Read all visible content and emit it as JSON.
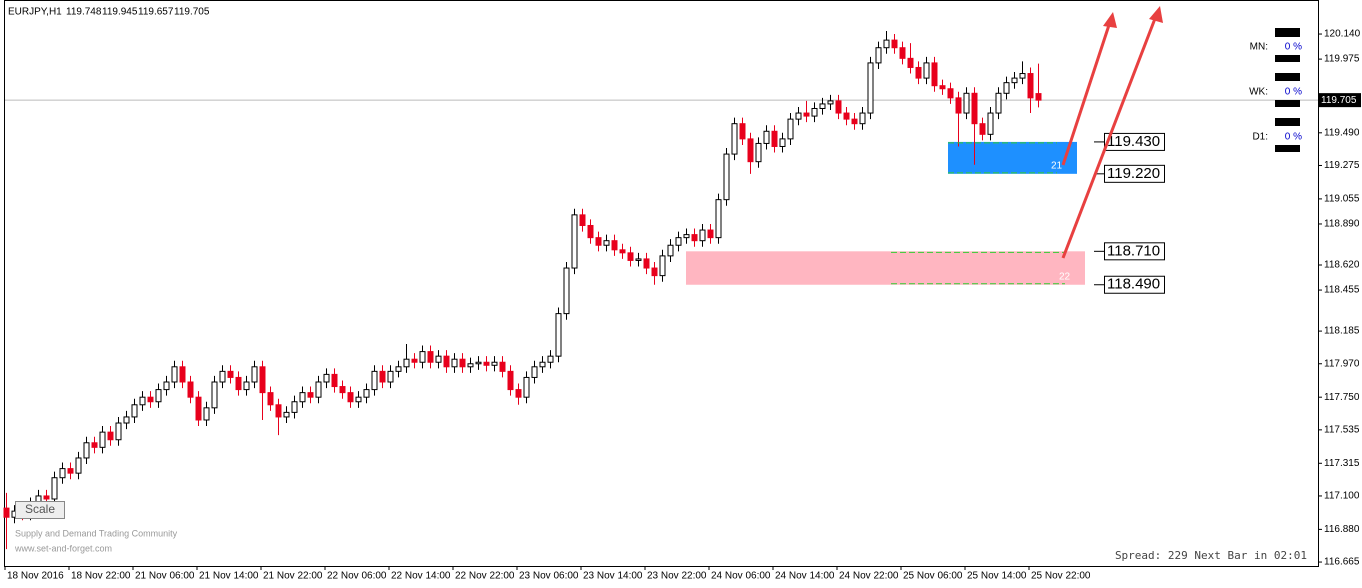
{
  "chart_data": {
    "type": "candlestick",
    "title": "EURJPY,H1",
    "ohlc_header": [
      119.748,
      119.945,
      119.657,
      119.705
    ],
    "x_labels": [
      "18 Nov 2016",
      "18 Nov 22:00",
      "21 Nov 06:00",
      "21 Nov 14:00",
      "21 Nov 22:00",
      "22 Nov 06:00",
      "22 Nov 14:00",
      "22 Nov 22:00",
      "23 Nov 06:00",
      "23 Nov 14:00",
      "23 Nov 22:00",
      "24 Nov 06:00",
      "24 Nov 14:00",
      "24 Nov 22:00",
      "25 Nov 06:00",
      "25 Nov 14:00",
      "25 Nov 22:00"
    ],
    "ylim": [
      116.639,
      120.364
    ],
    "yticks": [
      {
        "value": 120.14,
        "label": "120.140"
      },
      119.975,
      {
        "value": 119.49,
        "label": "119.490"
      },
      119.275,
      119.055,
      {
        "value": 118.89,
        "label": "118.890"
      },
      {
        "value": 118.62,
        "label": "118.620"
      },
      118.455,
      118.185,
      {
        "value": 117.97,
        "label": "117.970"
      },
      {
        "value": 117.75,
        "label": "117.750"
      },
      117.535,
      117.315,
      {
        "value": 117.1,
        "label": "117.100"
      },
      {
        "value": 116.88,
        "label": "116.880"
      },
      116.665
    ],
    "current_price": 119.705,
    "up_color": "#ffffff",
    "down_color": "#e8001c",
    "zones": [
      {
        "label": "21",
        "color": "#1e90ff",
        "top": {
          "value": 119.43,
          "label": "119.430"
        },
        "bottom": {
          "value": 119.22,
          "label": "119.220"
        }
      },
      {
        "label": "22",
        "color": "#ffb6c1",
        "top": {
          "value": 118.71,
          "label": "118.710"
        },
        "bottom": {
          "value": 118.49,
          "label": "118.490"
        }
      }
    ],
    "candles": [
      [
        117.02,
        117.12,
        116.75,
        116.96
      ],
      [
        116.96,
        117.04,
        116.92,
        117.0
      ],
      [
        117.0,
        117.04,
        116.94,
        116.98
      ],
      [
        116.98,
        117.09,
        116.94,
        117.05
      ],
      [
        117.05,
        117.14,
        117.01,
        117.1
      ],
      [
        117.1,
        117.14,
        117.04,
        117.08
      ],
      [
        117.08,
        117.26,
        117.04,
        117.22
      ],
      [
        117.22,
        117.32,
        117.18,
        117.28
      ],
      [
        117.28,
        117.32,
        117.21,
        117.25
      ],
      [
        117.25,
        117.39,
        117.21,
        117.35
      ],
      [
        117.35,
        117.49,
        117.31,
        117.45
      ],
      [
        117.45,
        117.49,
        117.38,
        117.42
      ],
      [
        117.42,
        117.56,
        117.38,
        117.52
      ],
      [
        117.52,
        117.56,
        117.43,
        117.47
      ],
      [
        117.47,
        117.62,
        117.43,
        117.58
      ],
      [
        117.58,
        117.66,
        117.54,
        117.62
      ],
      [
        117.62,
        117.74,
        117.58,
        117.7
      ],
      [
        117.7,
        117.79,
        117.66,
        117.75
      ],
      [
        117.75,
        117.79,
        117.68,
        117.72
      ],
      [
        117.72,
        117.84,
        117.68,
        117.8
      ],
      [
        117.8,
        117.89,
        117.76,
        117.85
      ],
      [
        117.85,
        117.99,
        117.81,
        117.95
      ],
      [
        117.95,
        117.99,
        117.81,
        117.85
      ],
      [
        117.85,
        117.89,
        117.71,
        117.75
      ],
      [
        117.75,
        117.79,
        117.56,
        117.6
      ],
      [
        117.6,
        117.72,
        117.56,
        117.68
      ],
      [
        117.68,
        117.89,
        117.64,
        117.85
      ],
      [
        117.85,
        117.96,
        117.81,
        117.92
      ],
      [
        117.92,
        117.96,
        117.84,
        117.88
      ],
      [
        117.88,
        117.92,
        117.76,
        117.8
      ],
      [
        117.8,
        117.89,
        117.76,
        117.85
      ],
      [
        117.85,
        117.99,
        117.81,
        117.95
      ],
      [
        117.95,
        117.99,
        117.6,
        117.78
      ],
      [
        117.78,
        117.82,
        117.66,
        117.7
      ],
      [
        117.7,
        117.74,
        117.5,
        117.62
      ],
      [
        117.62,
        117.69,
        117.58,
        117.65
      ],
      [
        117.65,
        117.76,
        117.61,
        117.72
      ],
      [
        117.72,
        117.82,
        117.68,
        117.78
      ],
      [
        117.78,
        117.82,
        117.71,
        117.75
      ],
      [
        117.75,
        117.89,
        117.71,
        117.85
      ],
      [
        117.85,
        117.94,
        117.81,
        117.9
      ],
      [
        117.9,
        117.94,
        117.78,
        117.82
      ],
      [
        117.82,
        117.86,
        117.74,
        117.78
      ],
      [
        117.78,
        117.82,
        117.68,
        117.72
      ],
      [
        117.72,
        117.79,
        117.68,
        117.75
      ],
      [
        117.75,
        117.84,
        117.71,
        117.8
      ],
      [
        117.8,
        117.96,
        117.76,
        117.92
      ],
      [
        117.92,
        117.96,
        117.81,
        117.85
      ],
      [
        117.85,
        117.96,
        117.81,
        117.92
      ],
      [
        117.92,
        117.99,
        117.88,
        117.95
      ],
      [
        117.95,
        118.1,
        117.91,
        118.0
      ],
      [
        118.0,
        118.04,
        117.94,
        117.98
      ],
      [
        117.98,
        118.09,
        117.94,
        118.05
      ],
      [
        118.05,
        118.09,
        117.94,
        117.98
      ],
      [
        117.98,
        118.06,
        117.94,
        118.02
      ],
      [
        118.02,
        118.06,
        117.91,
        117.95
      ],
      [
        117.95,
        118.04,
        117.91,
        118.0
      ],
      [
        118.0,
        118.04,
        117.91,
        117.95
      ],
      [
        117.95,
        118.01,
        117.91,
        117.97
      ],
      [
        117.97,
        118.02,
        117.93,
        117.98
      ],
      [
        117.98,
        118.02,
        117.92,
        117.96
      ],
      [
        117.96,
        118.02,
        117.92,
        117.98
      ],
      [
        117.98,
        118.02,
        117.88,
        117.92
      ],
      [
        117.92,
        117.96,
        117.76,
        117.8
      ],
      [
        117.8,
        117.84,
        117.7,
        117.75
      ],
      [
        117.75,
        117.92,
        117.71,
        117.88
      ],
      [
        117.88,
        117.99,
        117.84,
        117.95
      ],
      [
        117.95,
        118.02,
        117.91,
        117.98
      ],
      [
        117.98,
        118.06,
        117.94,
        118.02
      ],
      [
        118.02,
        118.34,
        117.98,
        118.3
      ],
      [
        118.3,
        118.64,
        118.26,
        118.6
      ],
      [
        118.6,
        118.99,
        118.56,
        118.95
      ],
      [
        118.95,
        118.99,
        118.84,
        118.88
      ],
      [
        118.88,
        118.92,
        118.76,
        118.8
      ],
      [
        118.8,
        118.84,
        118.71,
        118.75
      ],
      [
        118.75,
        118.82,
        118.71,
        118.78
      ],
      [
        118.78,
        118.82,
        118.68,
        118.72
      ],
      [
        118.72,
        118.76,
        118.66,
        118.7
      ],
      [
        118.7,
        118.74,
        118.61,
        118.65
      ],
      [
        118.65,
        118.7,
        118.61,
        118.66
      ],
      [
        118.66,
        118.7,
        118.56,
        118.6
      ],
      [
        118.6,
        118.64,
        118.49,
        118.55
      ],
      [
        118.55,
        118.72,
        118.51,
        118.68
      ],
      [
        118.68,
        118.79,
        118.64,
        118.75
      ],
      [
        118.75,
        118.84,
        118.71,
        118.8
      ],
      [
        118.8,
        118.86,
        118.76,
        118.82
      ],
      [
        118.82,
        118.86,
        118.74,
        118.78
      ],
      [
        118.78,
        118.89,
        118.74,
        118.85
      ],
      [
        118.85,
        118.89,
        118.76,
        118.8
      ],
      [
        118.8,
        119.09,
        118.76,
        119.05
      ],
      [
        119.05,
        119.39,
        119.01,
        119.35
      ],
      [
        119.35,
        119.59,
        119.31,
        119.55
      ],
      [
        119.55,
        119.59,
        119.41,
        119.45
      ],
      [
        119.45,
        119.49,
        119.22,
        119.3
      ],
      [
        119.3,
        119.46,
        119.26,
        119.42
      ],
      [
        119.42,
        119.54,
        119.38,
        119.5
      ],
      [
        119.5,
        119.54,
        119.36,
        119.4
      ],
      [
        119.4,
        119.49,
        119.36,
        119.45
      ],
      [
        119.45,
        119.62,
        119.41,
        119.58
      ],
      [
        119.58,
        119.66,
        119.54,
        119.62
      ],
      [
        119.62,
        119.7,
        119.56,
        119.6
      ],
      [
        119.6,
        119.69,
        119.56,
        119.65
      ],
      [
        119.65,
        119.72,
        119.61,
        119.68
      ],
      [
        119.68,
        119.74,
        119.64,
        119.7
      ],
      [
        119.7,
        119.74,
        119.58,
        119.62
      ],
      [
        119.62,
        119.66,
        119.54,
        119.58
      ],
      [
        119.58,
        119.62,
        119.51,
        119.55
      ],
      [
        119.55,
        119.66,
        119.51,
        119.62
      ],
      [
        119.62,
        119.99,
        119.58,
        119.95
      ],
      [
        119.95,
        120.09,
        119.91,
        120.05
      ],
      [
        120.05,
        120.16,
        120.01,
        120.1
      ],
      [
        120.1,
        120.14,
        120.01,
        120.05
      ],
      [
        120.05,
        120.09,
        119.94,
        119.98
      ],
      [
        119.98,
        120.08,
        119.88,
        119.92
      ],
      [
        119.92,
        119.96,
        119.81,
        119.85
      ],
      [
        119.85,
        119.99,
        119.81,
        119.95
      ],
      [
        119.95,
        119.99,
        119.76,
        119.8
      ],
      [
        119.8,
        119.84,
        119.74,
        119.78
      ],
      [
        119.78,
        119.82,
        119.68,
        119.72
      ],
      [
        119.72,
        119.76,
        119.4,
        119.62
      ],
      [
        119.62,
        119.79,
        119.58,
        119.75
      ],
      [
        119.75,
        119.79,
        119.28,
        119.55
      ],
      [
        119.55,
        119.59,
        119.44,
        119.48
      ],
      [
        119.48,
        119.66,
        119.44,
        119.62
      ],
      [
        119.62,
        119.79,
        119.58,
        119.75
      ],
      [
        119.75,
        119.86,
        119.71,
        119.82
      ],
      [
        119.82,
        119.89,
        119.78,
        119.85
      ],
      [
        119.85,
        119.96,
        119.81,
        119.88
      ],
      [
        119.88,
        119.92,
        119.62,
        119.72
      ],
      [
        119.748,
        119.945,
        119.657,
        119.705
      ]
    ]
  },
  "panel": {
    "rows": [
      {
        "label": "MN:",
        "value": "0 %"
      },
      {
        "label": "WK:",
        "value": "0 %"
      },
      {
        "label": "D1:",
        "value": "0 %"
      }
    ]
  },
  "scale_button": "Scale",
  "watermark": [
    "Supply and Demand Trading Community",
    "www.set-and-forget.com"
  ],
  "status": "Spread: 229 Next Bar in 02:01"
}
